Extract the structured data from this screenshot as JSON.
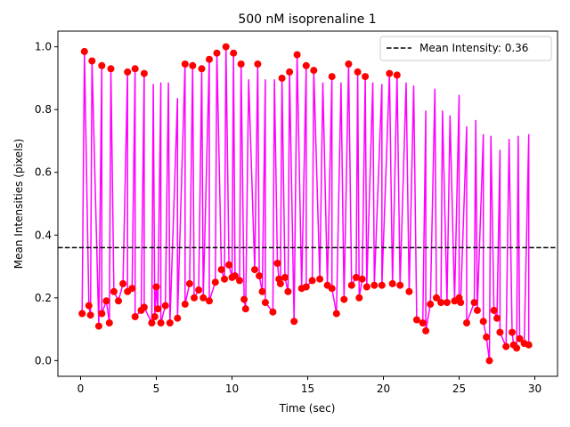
{
  "chart_data": {
    "type": "line",
    "title": "500 nM isoprenaline 1",
    "xlabel": "Time (sec)",
    "ylabel": "Mean Intensities (pixels)",
    "xlim": [
      -1.5,
      31.5
    ],
    "ylim": [
      -0.05,
      1.05
    ],
    "xticks": [
      0,
      5,
      10,
      15,
      20,
      25,
      30
    ],
    "yticks": [
      0.0,
      0.2,
      0.4,
      0.6,
      0.8,
      1.0
    ],
    "xtick_labels": [
      "0",
      "5",
      "10",
      "15",
      "20",
      "25",
      "30"
    ],
    "ytick_labels": [
      "0.0",
      "0.2",
      "0.4",
      "0.6",
      "0.8",
      "1.0"
    ],
    "grid": false,
    "legend": {
      "placement": "top-right",
      "entries": [
        "Mean Intensity: 0.36"
      ]
    },
    "mean_line": {
      "value": 0.36,
      "style": "dashed",
      "color": "#000000",
      "label": "Mean Intensity: 0.36"
    },
    "series": [
      {
        "style": "line",
        "color": "#ff00ff",
        "peaks": [
          [
            0.25,
            0.985
          ],
          [
            0.75,
            0.955
          ],
          [
            1.4,
            0.94
          ],
          [
            2.0,
            0.93
          ],
          [
            3.1,
            0.92
          ],
          [
            3.6,
            0.93
          ],
          [
            4.2,
            0.915
          ],
          [
            4.8,
            0.88
          ],
          [
            5.3,
            0.885
          ],
          [
            5.8,
            0.885
          ],
          [
            6.4,
            0.835
          ],
          [
            6.9,
            0.945
          ],
          [
            7.4,
            0.94
          ],
          [
            8.0,
            0.93
          ],
          [
            8.5,
            0.96
          ],
          [
            9.0,
            0.98
          ],
          [
            9.6,
            1.0
          ],
          [
            10.1,
            0.98
          ],
          [
            10.6,
            0.945
          ],
          [
            11.1,
            0.895
          ],
          [
            11.7,
            0.945
          ],
          [
            12.2,
            0.895
          ],
          [
            12.8,
            0.895
          ],
          [
            13.3,
            0.9
          ],
          [
            13.8,
            0.92
          ],
          [
            14.3,
            0.975
          ],
          [
            14.9,
            0.94
          ],
          [
            15.4,
            0.925
          ],
          [
            16.0,
            0.885
          ],
          [
            16.6,
            0.905
          ],
          [
            17.2,
            0.885
          ],
          [
            17.7,
            0.945
          ],
          [
            18.3,
            0.92
          ],
          [
            18.8,
            0.905
          ],
          [
            19.3,
            0.885
          ],
          [
            19.9,
            0.88
          ],
          [
            20.4,
            0.915
          ],
          [
            20.9,
            0.91
          ],
          [
            21.5,
            0.885
          ],
          [
            22.0,
            0.875
          ],
          [
            22.8,
            0.795
          ],
          [
            23.4,
            0.865
          ],
          [
            23.9,
            0.795
          ],
          [
            24.4,
            0.78
          ],
          [
            25.0,
            0.845
          ],
          [
            25.5,
            0.745
          ],
          [
            26.1,
            0.765
          ],
          [
            26.6,
            0.72
          ],
          [
            27.1,
            0.715
          ],
          [
            27.7,
            0.67
          ],
          [
            28.3,
            0.705
          ],
          [
            28.9,
            0.715
          ],
          [
            29.6,
            0.72
          ]
        ],
        "troughs": [
          [
            0.1,
            0.15
          ],
          [
            0.55,
            0.175
          ],
          [
            0.65,
            0.145
          ],
          [
            1.2,
            0.11
          ],
          [
            1.4,
            0.15
          ],
          [
            1.7,
            0.19
          ],
          [
            1.9,
            0.12
          ],
          [
            2.2,
            0.22
          ],
          [
            2.5,
            0.19
          ],
          [
            2.8,
            0.245
          ],
          [
            3.1,
            0.22
          ],
          [
            3.4,
            0.23
          ],
          [
            3.6,
            0.14
          ],
          [
            4.0,
            0.16
          ],
          [
            4.2,
            0.17
          ],
          [
            4.7,
            0.12
          ],
          [
            4.9,
            0.14
          ],
          [
            5.0,
            0.235
          ],
          [
            5.1,
            0.165
          ],
          [
            5.3,
            0.12
          ],
          [
            5.6,
            0.175
          ],
          [
            5.9,
            0.12
          ],
          [
            6.4,
            0.135
          ],
          [
            6.9,
            0.18
          ],
          [
            7.2,
            0.245
          ],
          [
            7.5,
            0.2
          ],
          [
            7.8,
            0.225
          ],
          [
            8.1,
            0.2
          ],
          [
            8.5,
            0.19
          ],
          [
            8.9,
            0.25
          ],
          [
            9.3,
            0.29
          ],
          [
            9.5,
            0.26
          ],
          [
            9.8,
            0.305
          ],
          [
            10.0,
            0.265
          ],
          [
            10.2,
            0.27
          ],
          [
            10.5,
            0.255
          ],
          [
            10.8,
            0.195
          ],
          [
            10.9,
            0.165
          ],
          [
            11.5,
            0.29
          ],
          [
            11.8,
            0.27
          ],
          [
            12.0,
            0.22
          ],
          [
            12.2,
            0.185
          ],
          [
            12.7,
            0.155
          ],
          [
            13.0,
            0.31
          ],
          [
            13.1,
            0.26
          ],
          [
            13.2,
            0.245
          ],
          [
            13.5,
            0.265
          ],
          [
            13.7,
            0.22
          ],
          [
            14.1,
            0.125
          ],
          [
            14.6,
            0.23
          ],
          [
            14.9,
            0.235
          ],
          [
            15.3,
            0.255
          ],
          [
            15.8,
            0.26
          ],
          [
            16.3,
            0.24
          ],
          [
            16.6,
            0.23
          ],
          [
            16.9,
            0.15
          ],
          [
            17.4,
            0.195
          ],
          [
            17.9,
            0.24
          ],
          [
            18.2,
            0.265
          ],
          [
            18.4,
            0.2
          ],
          [
            18.6,
            0.26
          ],
          [
            18.9,
            0.235
          ],
          [
            19.4,
            0.24
          ],
          [
            19.9,
            0.24
          ],
          [
            20.6,
            0.245
          ],
          [
            21.1,
            0.24
          ],
          [
            21.7,
            0.22
          ],
          [
            22.2,
            0.13
          ],
          [
            22.6,
            0.12
          ],
          [
            22.8,
            0.095
          ],
          [
            23.1,
            0.18
          ],
          [
            23.5,
            0.2
          ],
          [
            23.8,
            0.185
          ],
          [
            24.2,
            0.185
          ],
          [
            24.7,
            0.19
          ],
          [
            25.0,
            0.2
          ],
          [
            25.1,
            0.185
          ],
          [
            25.5,
            0.12
          ],
          [
            26.0,
            0.185
          ],
          [
            26.2,
            0.16
          ],
          [
            26.6,
            0.125
          ],
          [
            26.8,
            0.075
          ],
          [
            27.0,
            0.0
          ],
          [
            27.3,
            0.16
          ],
          [
            27.5,
            0.135
          ],
          [
            27.7,
            0.09
          ],
          [
            28.1,
            0.045
          ],
          [
            28.5,
            0.09
          ],
          [
            28.6,
            0.05
          ],
          [
            28.8,
            0.04
          ],
          [
            29.0,
            0.07
          ],
          [
            29.3,
            0.055
          ],
          [
            29.6,
            0.05
          ]
        ]
      },
      {
        "style": "scatter",
        "color": "#ff0000",
        "points": [
          [
            0.25,
            0.985
          ],
          [
            0.75,
            0.955
          ],
          [
            1.4,
            0.94
          ],
          [
            2.0,
            0.93
          ],
          [
            3.1,
            0.92
          ],
          [
            3.6,
            0.93
          ],
          [
            4.2,
            0.915
          ],
          [
            6.9,
            0.945
          ],
          [
            7.4,
            0.94
          ],
          [
            8.0,
            0.93
          ],
          [
            8.5,
            0.96
          ],
          [
            9.0,
            0.98
          ],
          [
            9.6,
            1.0
          ],
          [
            10.1,
            0.98
          ],
          [
            10.6,
            0.945
          ],
          [
            11.7,
            0.945
          ],
          [
            13.3,
            0.9
          ],
          [
            13.8,
            0.92
          ],
          [
            14.3,
            0.975
          ],
          [
            14.9,
            0.94
          ],
          [
            15.4,
            0.925
          ],
          [
            16.6,
            0.905
          ],
          [
            17.7,
            0.945
          ],
          [
            18.3,
            0.92
          ],
          [
            18.8,
            0.905
          ],
          [
            20.4,
            0.915
          ],
          [
            20.9,
            0.91
          ],
          [
            0.1,
            0.15
          ],
          [
            0.55,
            0.175
          ],
          [
            0.65,
            0.145
          ],
          [
            1.2,
            0.11
          ],
          [
            1.4,
            0.15
          ],
          [
            1.7,
            0.19
          ],
          [
            1.9,
            0.12
          ],
          [
            2.2,
            0.22
          ],
          [
            2.5,
            0.19
          ],
          [
            2.8,
            0.245
          ],
          [
            3.1,
            0.22
          ],
          [
            3.4,
            0.23
          ],
          [
            3.6,
            0.14
          ],
          [
            4.0,
            0.16
          ],
          [
            4.2,
            0.17
          ],
          [
            4.7,
            0.12
          ],
          [
            4.9,
            0.14
          ],
          [
            5.0,
            0.235
          ],
          [
            5.1,
            0.165
          ],
          [
            5.3,
            0.12
          ],
          [
            5.6,
            0.175
          ],
          [
            5.9,
            0.12
          ],
          [
            6.4,
            0.135
          ],
          [
            6.9,
            0.18
          ],
          [
            7.2,
            0.245
          ],
          [
            7.5,
            0.2
          ],
          [
            7.8,
            0.225
          ],
          [
            8.1,
            0.2
          ],
          [
            8.5,
            0.19
          ],
          [
            8.9,
            0.25
          ],
          [
            9.3,
            0.29
          ],
          [
            9.5,
            0.26
          ],
          [
            9.8,
            0.305
          ],
          [
            10.0,
            0.265
          ],
          [
            10.2,
            0.27
          ],
          [
            10.5,
            0.255
          ],
          [
            10.8,
            0.195
          ],
          [
            10.9,
            0.165
          ],
          [
            11.5,
            0.29
          ],
          [
            11.8,
            0.27
          ],
          [
            12.0,
            0.22
          ],
          [
            12.2,
            0.185
          ],
          [
            12.7,
            0.155
          ],
          [
            13.0,
            0.31
          ],
          [
            13.1,
            0.26
          ],
          [
            13.2,
            0.245
          ],
          [
            13.5,
            0.265
          ],
          [
            13.7,
            0.22
          ],
          [
            14.1,
            0.125
          ],
          [
            14.6,
            0.23
          ],
          [
            14.9,
            0.235
          ],
          [
            15.3,
            0.255
          ],
          [
            15.8,
            0.26
          ],
          [
            16.3,
            0.24
          ],
          [
            16.6,
            0.23
          ],
          [
            16.9,
            0.15
          ],
          [
            17.4,
            0.195
          ],
          [
            17.9,
            0.24
          ],
          [
            18.2,
            0.265
          ],
          [
            18.4,
            0.2
          ],
          [
            18.6,
            0.26
          ],
          [
            18.9,
            0.235
          ],
          [
            19.4,
            0.24
          ],
          [
            19.9,
            0.24
          ],
          [
            20.6,
            0.245
          ],
          [
            21.1,
            0.24
          ],
          [
            21.7,
            0.22
          ],
          [
            22.2,
            0.13
          ],
          [
            22.6,
            0.12
          ],
          [
            22.8,
            0.095
          ],
          [
            23.1,
            0.18
          ],
          [
            23.5,
            0.2
          ],
          [
            23.8,
            0.185
          ],
          [
            24.2,
            0.185
          ],
          [
            24.7,
            0.19
          ],
          [
            25.0,
            0.2
          ],
          [
            25.1,
            0.185
          ],
          [
            25.5,
            0.12
          ],
          [
            26.0,
            0.185
          ],
          [
            26.2,
            0.16
          ],
          [
            26.6,
            0.125
          ],
          [
            26.8,
            0.075
          ],
          [
            27.0,
            0.0
          ],
          [
            27.3,
            0.16
          ],
          [
            27.5,
            0.135
          ],
          [
            27.7,
            0.09
          ],
          [
            28.1,
            0.045
          ],
          [
            28.5,
            0.09
          ],
          [
            28.6,
            0.05
          ],
          [
            28.8,
            0.04
          ],
          [
            29.0,
            0.07
          ],
          [
            29.3,
            0.055
          ],
          [
            29.6,
            0.05
          ]
        ]
      }
    ]
  }
}
